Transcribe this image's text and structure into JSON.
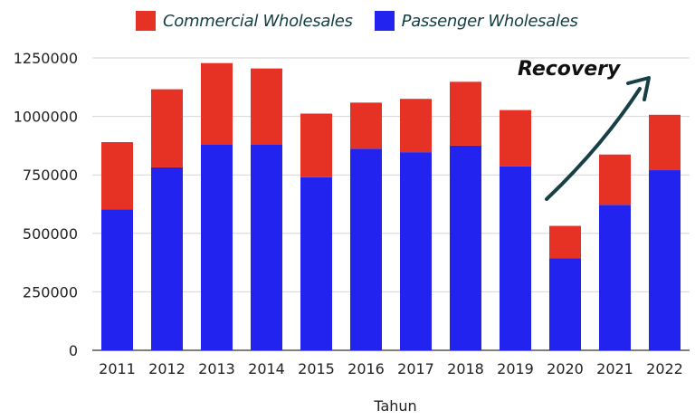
{
  "chart_data": {
    "type": "bar",
    "stacked": true,
    "categories": [
      "2011",
      "2012",
      "2013",
      "2014",
      "2015",
      "2016",
      "2017",
      "2018",
      "2019",
      "2020",
      "2021",
      "2022"
    ],
    "series": [
      {
        "name": "Passenger Wholesales",
        "color": "#2323f0",
        "values": [
          602000,
          782000,
          880000,
          880000,
          740000,
          862000,
          847000,
          875000,
          786000,
          393000,
          622000,
          770000
        ]
      },
      {
        "name": "Commercial Wholesales",
        "color": "#e63125",
        "values": [
          288000,
          334000,
          348000,
          325000,
          272000,
          197000,
          228000,
          273000,
          241000,
          139000,
          215000,
          237000
        ]
      }
    ],
    "xlabel": "Tahun",
    "ylabel": "",
    "ylim": [
      0,
      1250000
    ],
    "yticks": [
      "0",
      "250000",
      "500000",
      "750000",
      "1000000",
      "1250000"
    ],
    "grid": true,
    "legend_position": "top",
    "annotation": "Recovery"
  }
}
